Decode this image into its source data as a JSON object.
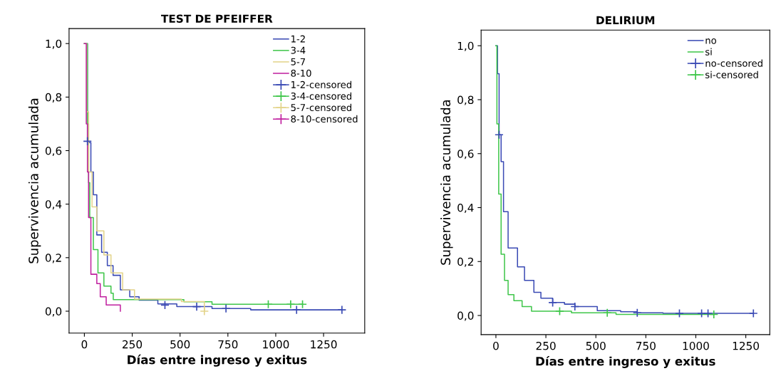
{
  "chart_data": [
    {
      "type": "step",
      "title": "TEST DE PFEIFFER",
      "xlabel": "Días entre ingreso y exitus",
      "ylabel": "Supervivencia acumulada",
      "xlim": [
        -80,
        1465
      ],
      "ylim": [
        -0.082,
        1.056
      ],
      "xticks": [
        0,
        250,
        500,
        750,
        1000,
        1250
      ],
      "yticks": [
        {
          "value": 0,
          "label": "0,0"
        },
        {
          "value": 0.2,
          "label": "0,2"
        },
        {
          "value": 0.4,
          "label": "0,4"
        },
        {
          "value": 0.6,
          "label": "0,6"
        },
        {
          "value": 0.8,
          "label": "0,8"
        },
        {
          "value": 1,
          "label": "1,0"
        }
      ],
      "legend": "top right",
      "grid": false,
      "series": [
        {
          "name": "1-2",
          "color": "#3a4ab4",
          "x": [
            0,
            16,
            34,
            47,
            65,
            90,
            120,
            150,
            188,
            237,
            286,
            384,
            483,
            667,
            869,
            1346
          ],
          "values": [
            1,
            0.63,
            0.52,
            0.435,
            0.285,
            0.22,
            0.17,
            0.134,
            0.08,
            0.054,
            0.041,
            0.027,
            0.017,
            0.01,
            0.005,
            0.005
          ]
        },
        {
          "name": "3-4",
          "color": "#3fc64a",
          "x": [
            0,
            16,
            22,
            28,
            47,
            71,
            102,
            139,
            151,
            520,
            667,
            1140
          ],
          "values": [
            1,
            0.7,
            0.48,
            0.35,
            0.23,
            0.143,
            0.094,
            0.067,
            0.043,
            0.035,
            0.026,
            0.026
          ]
        },
        {
          "name": "5-7",
          "color": "#e3d48a",
          "x": [
            0,
            12,
            22,
            40,
            65,
            102,
            139,
            200,
            262,
            507,
            627
          ],
          "values": [
            1,
            0.745,
            0.52,
            0.39,
            0.3,
            0.21,
            0.143,
            0.08,
            0.045,
            0.036,
            0.0
          ]
        },
        {
          "name": "8-10",
          "color": "#c0209f",
          "x": [
            0,
            10,
            16,
            22,
            34,
            65,
            83,
            114,
            188
          ],
          "values": [
            1,
            0.7,
            0.52,
            0.35,
            0.138,
            0.103,
            0.054,
            0.023,
            0.0
          ]
        },
        {
          "name": "1-2-censored",
          "type": "scatter",
          "marker": "cross",
          "color": "#3a4ab4",
          "x": [
            16,
            421,
            587,
            740,
            1109,
            1346
          ],
          "values": [
            0.635,
            0.023,
            0.017,
            0.01,
            0.005,
            0.005
          ]
        },
        {
          "name": "3-4-censored",
          "type": "scatter",
          "marker": "cross",
          "color": "#3fc64a",
          "x": [
            961,
            1078,
            1140
          ],
          "values": [
            0.026,
            0.026,
            0.026
          ]
        },
        {
          "name": "5-7-censored",
          "type": "scatter",
          "marker": "cross",
          "color": "#e3d48a",
          "x": [
            627
          ],
          "values": [
            0.0
          ]
        },
        {
          "name": "8-10-censored",
          "type": "scatter",
          "marker": "cross",
          "color": "#c0209f"
        }
      ]
    },
    {
      "type": "step",
      "title": "DELIRIUM",
      "xlabel": "Días entre ingreso y exitus",
      "ylabel": "Supervivencia acumulada",
      "xlim": [
        -74,
        1370
      ],
      "ylim": [
        -0.071,
        1.058
      ],
      "xticks": [
        0,
        250,
        500,
        750,
        1000,
        1250
      ],
      "yticks": [
        {
          "value": 0,
          "label": "0,0"
        },
        {
          "value": 0.2,
          "label": "0,2"
        },
        {
          "value": 0.4,
          "label": "0,4"
        },
        {
          "value": 0.6,
          "label": "0,6"
        },
        {
          "value": 0.8,
          "label": "0,8"
        },
        {
          "value": 1,
          "label": "1,0"
        }
      ],
      "legend": "top right",
      "grid": false,
      "series": [
        {
          "name": "no",
          "color": "#3a4ab4",
          "x": [
            0,
            8,
            16,
            26,
            38,
            61,
            108,
            143,
            190,
            225,
            284,
            343,
            395,
            507,
            624,
            707,
            836,
            1288
          ],
          "values": [
            1,
            0.896,
            0.67,
            0.57,
            0.385,
            0.25,
            0.18,
            0.13,
            0.086,
            0.064,
            0.048,
            0.042,
            0.033,
            0.018,
            0.014,
            0.01,
            0.008,
            0.008
          ]
        },
        {
          "name": "si",
          "color": "#3fc64a",
          "x": [
            0,
            5,
            14,
            26,
            43,
            61,
            90,
            131,
            178,
            378,
            601,
            1090
          ],
          "values": [
            1,
            0.71,
            0.45,
            0.227,
            0.13,
            0.077,
            0.055,
            0.033,
            0.016,
            0.01,
            0.004,
            0.004
          ]
        },
        {
          "name": "no-censored",
          "type": "scatter",
          "marker": "cross",
          "color": "#3a4ab4",
          "x": [
            16,
            284,
            395,
            707,
            918,
            1029,
            1061,
            1288
          ],
          "values": [
            0.67,
            0.048,
            0.033,
            0.01,
            0.008,
            0.008,
            0.008,
            0.008
          ]
        },
        {
          "name": "si-censored",
          "type": "scatter",
          "marker": "cross",
          "color": "#3fc64a",
          "x": [
            319,
            557,
            1090
          ],
          "values": [
            0.016,
            0.01,
            0.004
          ]
        }
      ]
    }
  ]
}
